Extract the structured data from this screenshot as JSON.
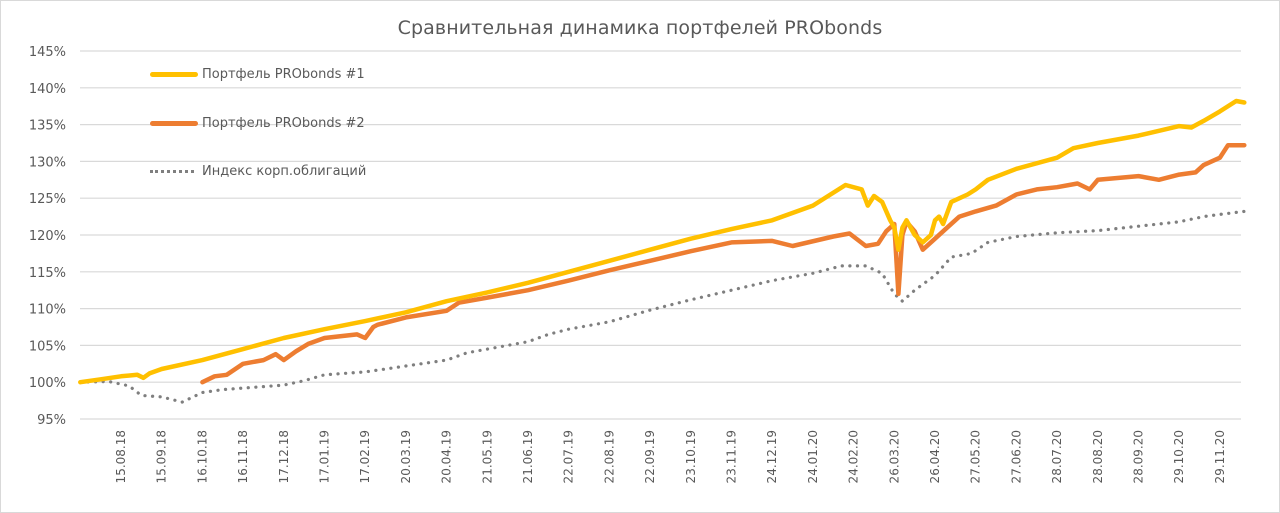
{
  "chart_data": {
    "type": "line",
    "title": "Сравнительная динамика портфелей PRObonds",
    "xlabel": "",
    "ylabel": "",
    "ylim": [
      0.95,
      1.45
    ],
    "yticks": [
      "95%",
      "100%",
      "105%",
      "110%",
      "115%",
      "120%",
      "125%",
      "130%",
      "135%",
      "140%",
      "145%"
    ],
    "grid": true,
    "legend_position": "top-left inside",
    "categories": [
      "15.08.18",
      "15.09.18",
      "16.10.18",
      "16.11.18",
      "17.12.18",
      "17.01.19",
      "17.02.19",
      "20.03.19",
      "20.04.19",
      "21.05.19",
      "21.06.19",
      "22.07.19",
      "22.08.19",
      "22.09.19",
      "23.10.19",
      "23.11.19",
      "24.12.19",
      "24.01.20",
      "24.02.20",
      "26.03.20",
      "26.04.20",
      "27.05.20",
      "27.06.20",
      "28.07.20",
      "28.08.20",
      "28.09.20",
      "29.10.20",
      "29.11.20"
    ],
    "x_positions_note": "x is measured in category-label units: 0 = 15.08.18, 27 = 29.11.20; data starts at about -1.0",
    "series": [
      {
        "name": "Портфель PRObonds #1",
        "color": "#FFC000",
        "style": "solid",
        "points": [
          [
            -1.0,
            1.0
          ],
          [
            -0.5,
            1.004
          ],
          [
            0.0,
            1.008
          ],
          [
            0.4,
            1.01
          ],
          [
            0.55,
            1.006
          ],
          [
            0.7,
            1.012
          ],
          [
            1.0,
            1.018
          ],
          [
            2.0,
            1.03
          ],
          [
            3.0,
            1.045
          ],
          [
            4.0,
            1.06
          ],
          [
            5.0,
            1.072
          ],
          [
            6.0,
            1.083
          ],
          [
            7.0,
            1.095
          ],
          [
            8.0,
            1.11
          ],
          [
            9.0,
            1.122
          ],
          [
            10.0,
            1.135
          ],
          [
            11.0,
            1.15
          ],
          [
            12.0,
            1.165
          ],
          [
            13.0,
            1.18
          ],
          [
            14.0,
            1.195
          ],
          [
            15.0,
            1.208
          ],
          [
            16.0,
            1.22
          ],
          [
            17.0,
            1.24
          ],
          [
            17.8,
            1.268
          ],
          [
            18.2,
            1.262
          ],
          [
            18.35,
            1.24
          ],
          [
            18.5,
            1.253
          ],
          [
            18.7,
            1.245
          ],
          [
            18.9,
            1.22
          ],
          [
            19.0,
            1.21
          ],
          [
            19.1,
            1.18
          ],
          [
            19.2,
            1.21
          ],
          [
            19.3,
            1.22
          ],
          [
            19.5,
            1.2
          ],
          [
            19.7,
            1.19
          ],
          [
            19.9,
            1.2
          ],
          [
            20.0,
            1.22
          ],
          [
            20.1,
            1.225
          ],
          [
            20.2,
            1.215
          ],
          [
            20.4,
            1.245
          ],
          [
            20.8,
            1.255
          ],
          [
            21.0,
            1.262
          ],
          [
            21.3,
            1.275
          ],
          [
            22.0,
            1.29
          ],
          [
            23.0,
            1.305
          ],
          [
            23.4,
            1.318
          ],
          [
            24.0,
            1.325
          ],
          [
            25.0,
            1.335
          ],
          [
            26.0,
            1.348
          ],
          [
            26.3,
            1.346
          ],
          [
            26.6,
            1.355
          ],
          [
            27.0,
            1.368
          ],
          [
            27.4,
            1.382
          ],
          [
            27.6,
            1.38
          ]
        ]
      },
      {
        "name": "Портфель PRObonds #2",
        "color": "#ED7D31",
        "style": "solid",
        "points": [
          [
            2.0,
            1.0
          ],
          [
            2.3,
            1.008
          ],
          [
            2.6,
            1.01
          ],
          [
            3.0,
            1.025
          ],
          [
            3.5,
            1.03
          ],
          [
            3.8,
            1.038
          ],
          [
            4.0,
            1.03
          ],
          [
            4.3,
            1.042
          ],
          [
            4.6,
            1.052
          ],
          [
            5.0,
            1.06
          ],
          [
            5.8,
            1.065
          ],
          [
            6.0,
            1.06
          ],
          [
            6.2,
            1.075
          ],
          [
            6.3,
            1.078
          ],
          [
            7.0,
            1.088
          ],
          [
            8.0,
            1.097
          ],
          [
            8.3,
            1.108
          ],
          [
            9.0,
            1.115
          ],
          [
            10.0,
            1.125
          ],
          [
            11.0,
            1.138
          ],
          [
            12.0,
            1.152
          ],
          [
            13.0,
            1.165
          ],
          [
            14.0,
            1.178
          ],
          [
            15.0,
            1.19
          ],
          [
            16.0,
            1.192
          ],
          [
            16.5,
            1.185
          ],
          [
            17.5,
            1.198
          ],
          [
            17.9,
            1.202
          ],
          [
            18.3,
            1.185
          ],
          [
            18.6,
            1.188
          ],
          [
            18.8,
            1.205
          ],
          [
            19.0,
            1.215
          ],
          [
            19.1,
            1.12
          ],
          [
            19.2,
            1.2
          ],
          [
            19.3,
            1.218
          ],
          [
            19.5,
            1.205
          ],
          [
            19.7,
            1.18
          ],
          [
            20.0,
            1.195
          ],
          [
            20.3,
            1.21
          ],
          [
            20.6,
            1.225
          ],
          [
            21.0,
            1.232
          ],
          [
            21.5,
            1.24
          ],
          [
            22.0,
            1.255
          ],
          [
            22.5,
            1.262
          ],
          [
            23.0,
            1.265
          ],
          [
            23.5,
            1.27
          ],
          [
            23.8,
            1.262
          ],
          [
            24.0,
            1.275
          ],
          [
            25.0,
            1.28
          ],
          [
            25.5,
            1.275
          ],
          [
            26.0,
            1.282
          ],
          [
            26.4,
            1.285
          ],
          [
            26.6,
            1.295
          ],
          [
            27.0,
            1.305
          ],
          [
            27.2,
            1.322
          ],
          [
            27.6,
            1.322
          ]
        ]
      },
      {
        "name": "Индекс корп.облигаций",
        "color": "#7F7F7F",
        "style": "dotted",
        "points": [
          [
            -1.0,
            1.0
          ],
          [
            -0.3,
            1.001
          ],
          [
            0.2,
            0.995
          ],
          [
            0.5,
            0.982
          ],
          [
            1.0,
            0.98
          ],
          [
            1.5,
            0.973
          ],
          [
            2.0,
            0.986
          ],
          [
            2.5,
            0.99
          ],
          [
            3.0,
            0.992
          ],
          [
            3.5,
            0.994
          ],
          [
            4.0,
            0.996
          ],
          [
            4.5,
            1.002
          ],
          [
            5.0,
            1.01
          ],
          [
            6.0,
            1.014
          ],
          [
            6.5,
            1.018
          ],
          [
            7.0,
            1.022
          ],
          [
            8.0,
            1.03
          ],
          [
            8.5,
            1.04
          ],
          [
            9.0,
            1.045
          ],
          [
            10.0,
            1.055
          ],
          [
            10.5,
            1.065
          ],
          [
            11.0,
            1.072
          ],
          [
            12.0,
            1.082
          ],
          [
            13.0,
            1.098
          ],
          [
            14.0,
            1.112
          ],
          [
            15.0,
            1.125
          ],
          [
            16.0,
            1.138
          ],
          [
            17.0,
            1.148
          ],
          [
            17.7,
            1.158
          ],
          [
            18.3,
            1.158
          ],
          [
            18.7,
            1.148
          ],
          [
            19.0,
            1.12
          ],
          [
            19.2,
            1.11
          ],
          [
            19.5,
            1.125
          ],
          [
            20.0,
            1.145
          ],
          [
            20.4,
            1.17
          ],
          [
            20.9,
            1.175
          ],
          [
            21.3,
            1.19
          ],
          [
            22.0,
            1.198
          ],
          [
            23.0,
            1.203
          ],
          [
            24.0,
            1.206
          ],
          [
            25.0,
            1.212
          ],
          [
            26.0,
            1.218
          ],
          [
            26.6,
            1.225
          ],
          [
            27.0,
            1.228
          ],
          [
            27.6,
            1.232
          ]
        ]
      }
    ]
  }
}
